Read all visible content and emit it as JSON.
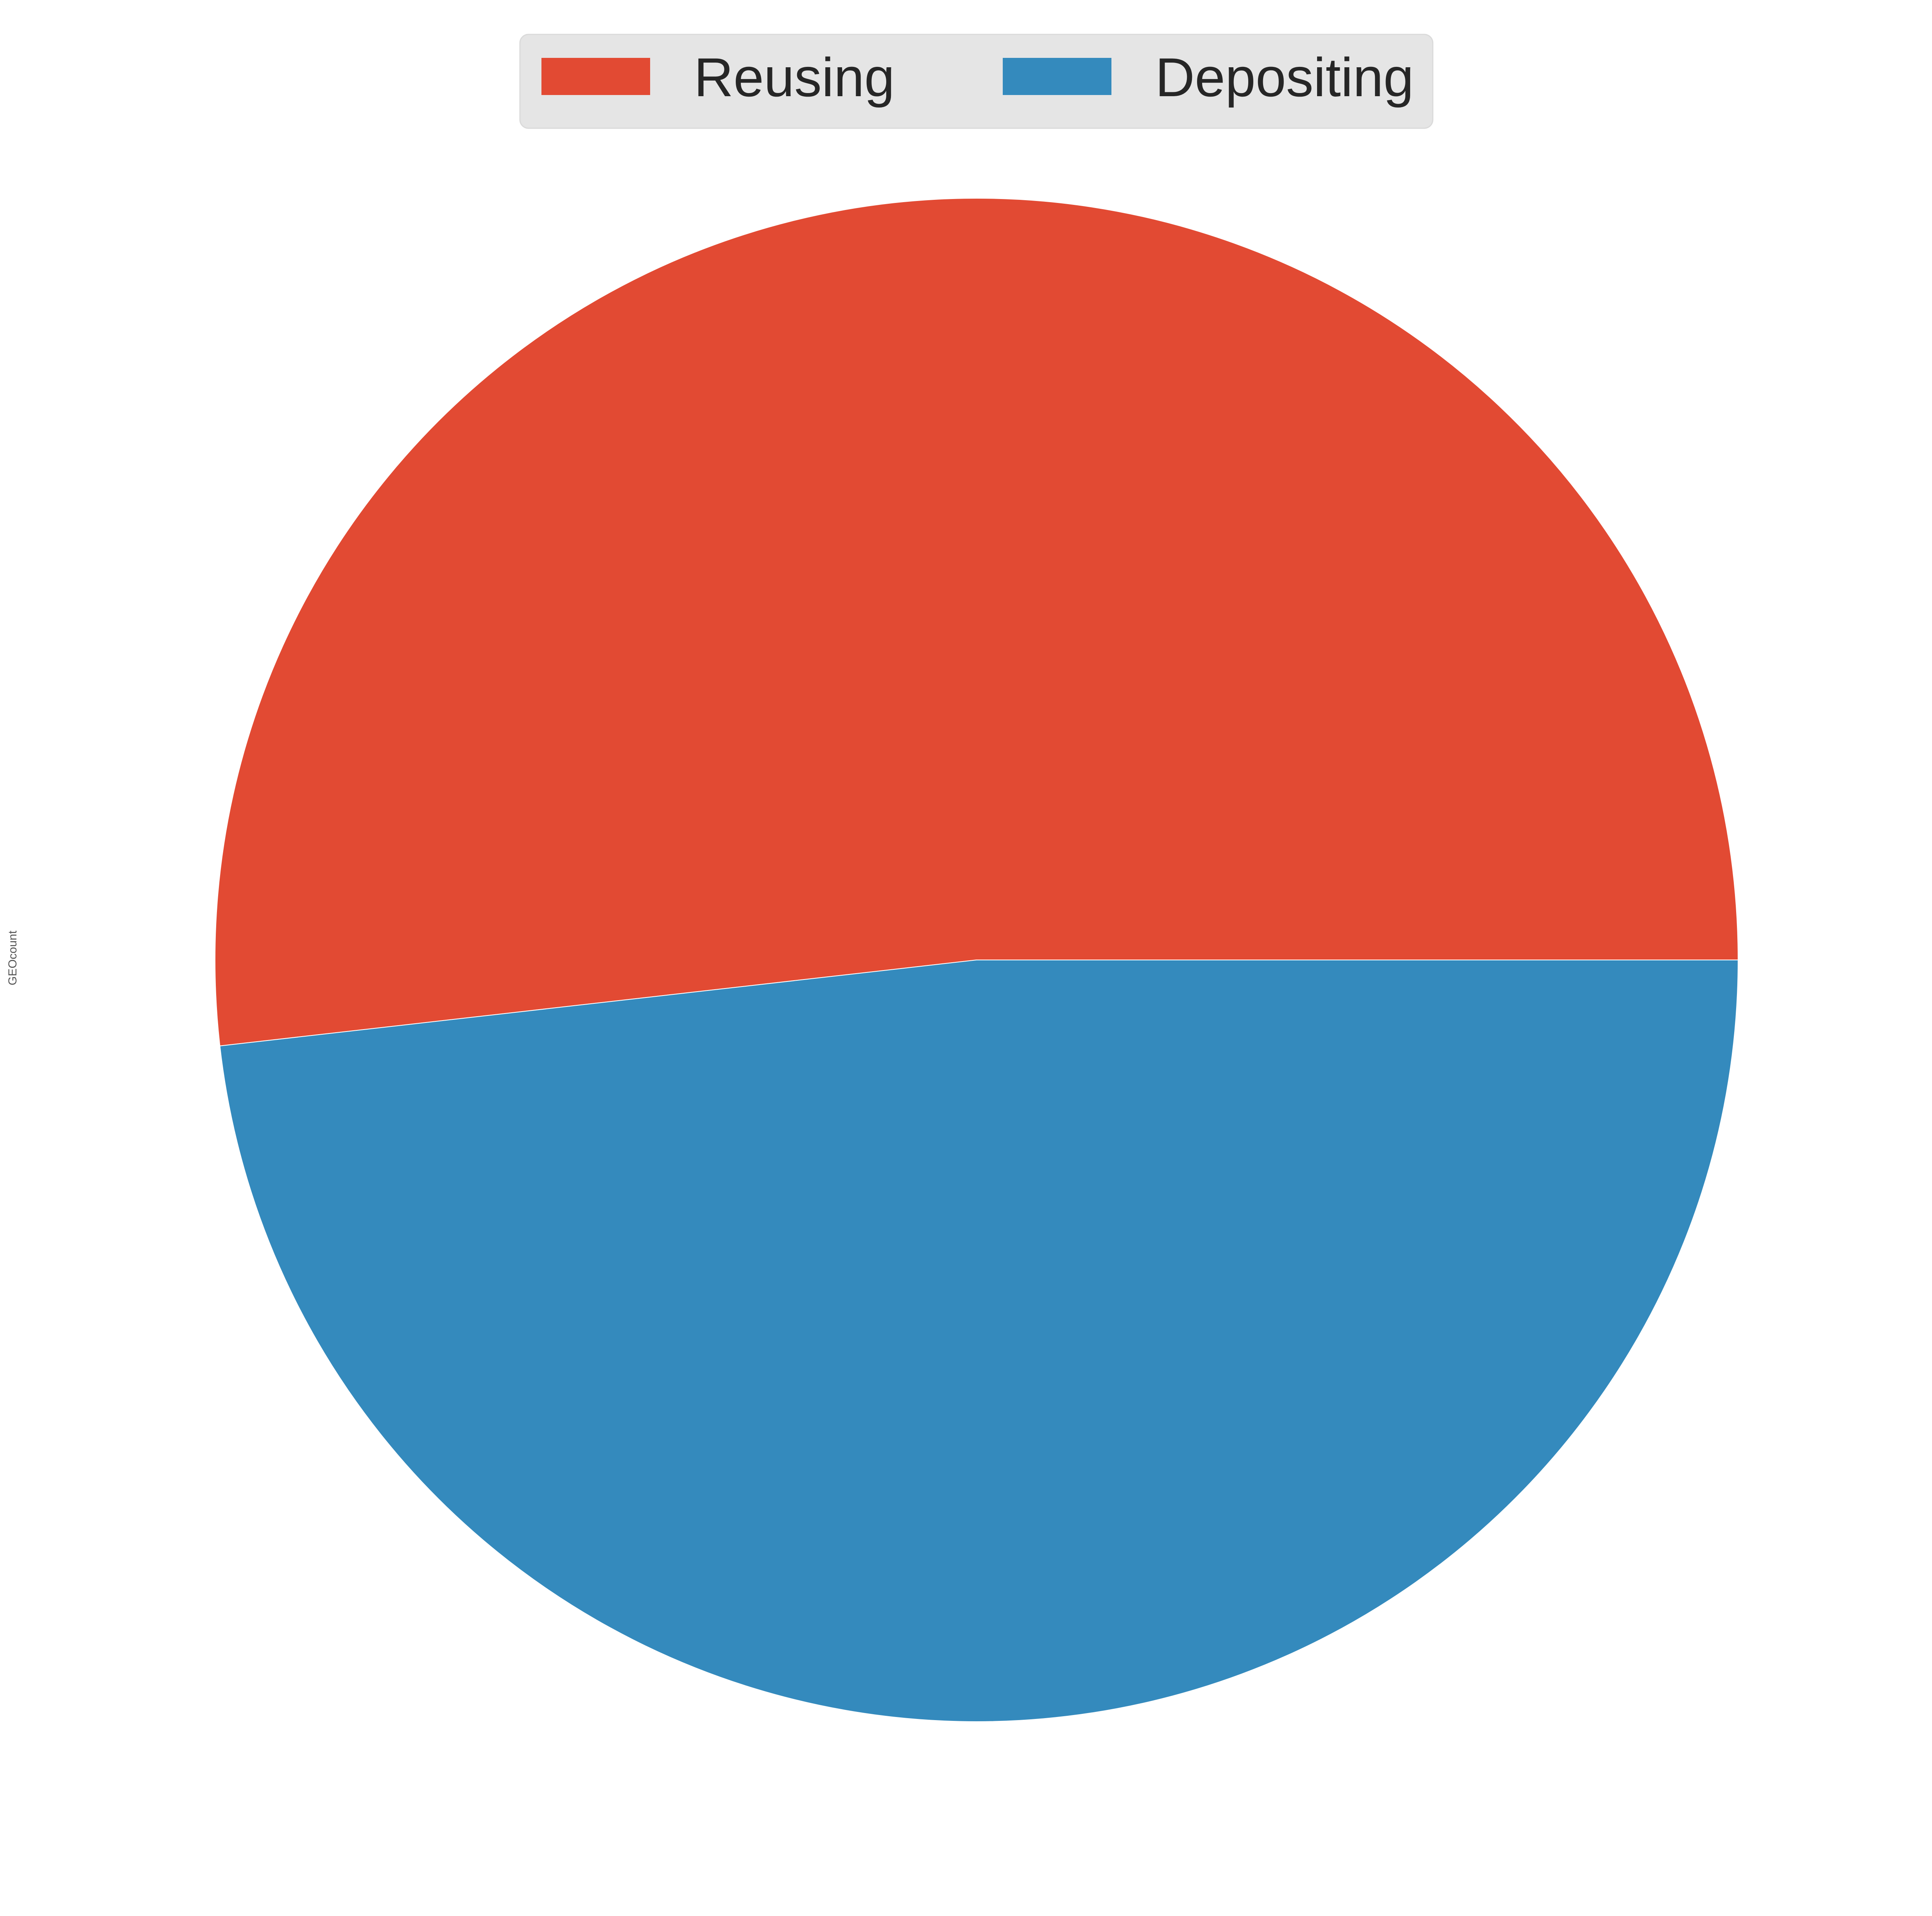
{
  "chart_data": {
    "type": "pie",
    "ylabel": "GEOcount",
    "start_angle_deg": 0,
    "direction": "counterclockwise",
    "slices": [
      {
        "label": "Reusing",
        "value": 51.8,
        "color": "#E24A33"
      },
      {
        "label": "Depositing",
        "value": 48.2,
        "color": "#348ABD"
      }
    ],
    "legend": {
      "placement": "top-center",
      "columns": 2,
      "background": "#E5E5E5"
    }
  }
}
